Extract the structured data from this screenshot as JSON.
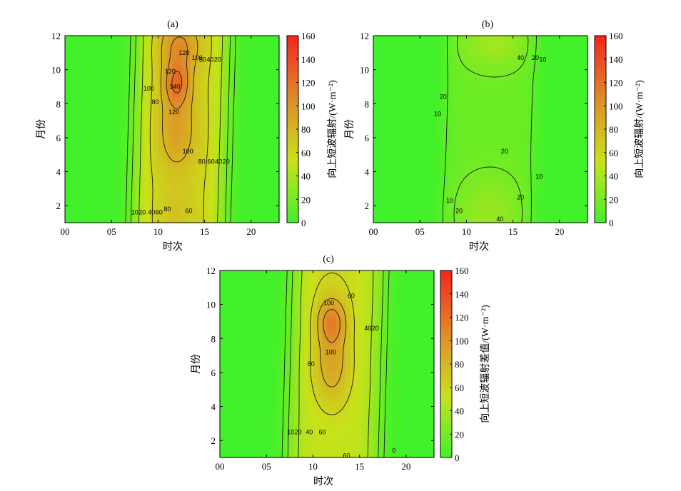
{
  "chart_data": [
    {
      "type": "heatmap",
      "title": "(a)",
      "xlabel": "时次",
      "ylabel": "月份",
      "xticks": [
        "00",
        "05",
        "10",
        "15",
        "20"
      ],
      "xtick_values": [
        0,
        5,
        10,
        15,
        20
      ],
      "xlim": [
        0,
        23
      ],
      "yticks": [
        "2",
        "4",
        "6",
        "8",
        "10",
        "12"
      ],
      "ytick_values": [
        2,
        4,
        6,
        8,
        10,
        12
      ],
      "ylim": [
        1,
        12
      ],
      "colorbar": {
        "label": "向上短波辐射/(W·m⁻²)",
        "ticks": [
          "0",
          "20",
          "40",
          "60",
          "80",
          "100",
          "120",
          "140",
          "160"
        ],
        "range": [
          0,
          160
        ],
        "colors": [
          "#41f12a",
          "#c9e21a",
          "#e08b28",
          "#f5251d"
        ]
      },
      "contour_levels": [
        10,
        20,
        40,
        60,
        80,
        100,
        120,
        140
      ],
      "contour_labels": [
        {
          "text": "120",
          "x": 11.3,
          "y": 9.9
        },
        {
          "text": "140",
          "x": 11.8,
          "y": 9.0
        },
        {
          "text": "120",
          "x": 12.8,
          "y": 11.0
        },
        {
          "text": "100",
          "x": 14.2,
          "y": 10.7
        },
        {
          "text": "80",
          "x": 14.8,
          "y": 10.6
        },
        {
          "text": "40",
          "x": 15.6,
          "y": 10.6
        },
        {
          "text": "20",
          "x": 16.4,
          "y": 10.6
        },
        {
          "text": "100",
          "x": 9.0,
          "y": 8.9
        },
        {
          "text": "80",
          "x": 9.7,
          "y": 8.1
        },
        {
          "text": "120",
          "x": 11.7,
          "y": 7.5
        },
        {
          "text": "100",
          "x": 13.2,
          "y": 5.2
        },
        {
          "text": "80",
          "x": 14.7,
          "y": 4.6
        },
        {
          "text": "60",
          "x": 15.7,
          "y": 4.6
        },
        {
          "text": "40",
          "x": 16.5,
          "y": 4.6
        },
        {
          "text": "20",
          "x": 17.3,
          "y": 4.6
        },
        {
          "text": "10",
          "x": 7.5,
          "y": 1.6
        },
        {
          "text": "20",
          "x": 8.3,
          "y": 1.6
        },
        {
          "text": "40",
          "x": 9.3,
          "y": 1.6
        },
        {
          "text": "60",
          "x": 10.1,
          "y": 1.6
        },
        {
          "text": "80",
          "x": 11.0,
          "y": 1.8
        },
        {
          "text": "60",
          "x": 13.3,
          "y": 1.7
        }
      ]
    },
    {
      "type": "heatmap",
      "title": "(b)",
      "xlabel": "时次",
      "ylabel": "月份",
      "xticks": [
        "00",
        "05",
        "10",
        "15",
        "20"
      ],
      "xtick_values": [
        0,
        5,
        10,
        15,
        20
      ],
      "xlim": [
        0,
        23
      ],
      "yticks": [
        "2",
        "4",
        "6",
        "8",
        "10",
        "12"
      ],
      "ytick_values": [
        2,
        4,
        6,
        8,
        10,
        12
      ],
      "ylim": [
        1,
        12
      ],
      "colorbar": {
        "label": "向上短波辐射/(W·m⁻²)",
        "ticks": [
          "0",
          "20",
          "40",
          "60",
          "80",
          "100",
          "120",
          "140",
          "160"
        ],
        "range": [
          0,
          160
        ],
        "colors": [
          "#41f12a",
          "#c9e21a",
          "#e08b28",
          "#f5251d"
        ]
      },
      "contour_levels": [
        10,
        20,
        40
      ],
      "contour_labels": [
        {
          "text": "40",
          "x": 15.8,
          "y": 10.7
        },
        {
          "text": "20",
          "x": 17.4,
          "y": 10.7
        },
        {
          "text": "10",
          "x": 18.2,
          "y": 10.6
        },
        {
          "text": "20",
          "x": 7.5,
          "y": 8.4
        },
        {
          "text": "10",
          "x": 6.9,
          "y": 7.4
        },
        {
          "text": "20",
          "x": 14.1,
          "y": 5.2
        },
        {
          "text": "10",
          "x": 17.8,
          "y": 3.7
        },
        {
          "text": "20",
          "x": 15.8,
          "y": 2.5
        },
        {
          "text": "10",
          "x": 8.2,
          "y": 2.3
        },
        {
          "text": "20",
          "x": 9.2,
          "y": 1.7
        },
        {
          "text": "40",
          "x": 13.6,
          "y": 1.2
        }
      ]
    },
    {
      "type": "heatmap",
      "title": "(c)",
      "xlabel": "时次",
      "ylabel": "月份",
      "xticks": [
        "00",
        "05",
        "10",
        "15",
        "20"
      ],
      "xtick_values": [
        0,
        5,
        10,
        15,
        20
      ],
      "xlim": [
        0,
        23
      ],
      "yticks": [
        "2",
        "4",
        "6",
        "8",
        "10",
        "12"
      ],
      "ytick_values": [
        2,
        4,
        6,
        8,
        10,
        12
      ],
      "ylim": [
        1,
        12
      ],
      "colorbar": {
        "label": "向上短波辐射差值/(W·m⁻²)",
        "ticks": [
          "0",
          "20",
          "40",
          "60",
          "80",
          "100",
          "120",
          "140",
          "160"
        ],
        "range": [
          0,
          160
        ],
        "colors": [
          "#41f12a",
          "#c9e21a",
          "#e08b28",
          "#f5251d"
        ]
      },
      "contour_levels": [
        10,
        20,
        40,
        60,
        80,
        100
      ],
      "contour_labels": [
        {
          "text": "100",
          "x": 11.7,
          "y": 10.1
        },
        {
          "text": "60",
          "x": 14.1,
          "y": 10.5
        },
        {
          "text": "40",
          "x": 15.9,
          "y": 8.6
        },
        {
          "text": "20",
          "x": 16.7,
          "y": 8.6
        },
        {
          "text": "100",
          "x": 11.9,
          "y": 7.2
        },
        {
          "text": "80",
          "x": 9.8,
          "y": 6.5
        },
        {
          "text": "10",
          "x": 7.6,
          "y": 2.5
        },
        {
          "text": "20",
          "x": 8.4,
          "y": 2.5
        },
        {
          "text": "40",
          "x": 9.6,
          "y": 2.5
        },
        {
          "text": "60",
          "x": 11.0,
          "y": 2.5
        },
        {
          "text": "60",
          "x": 13.6,
          "y": 1.1
        },
        {
          "text": "0",
          "x": 18.7,
          "y": 1.4
        }
      ]
    }
  ]
}
